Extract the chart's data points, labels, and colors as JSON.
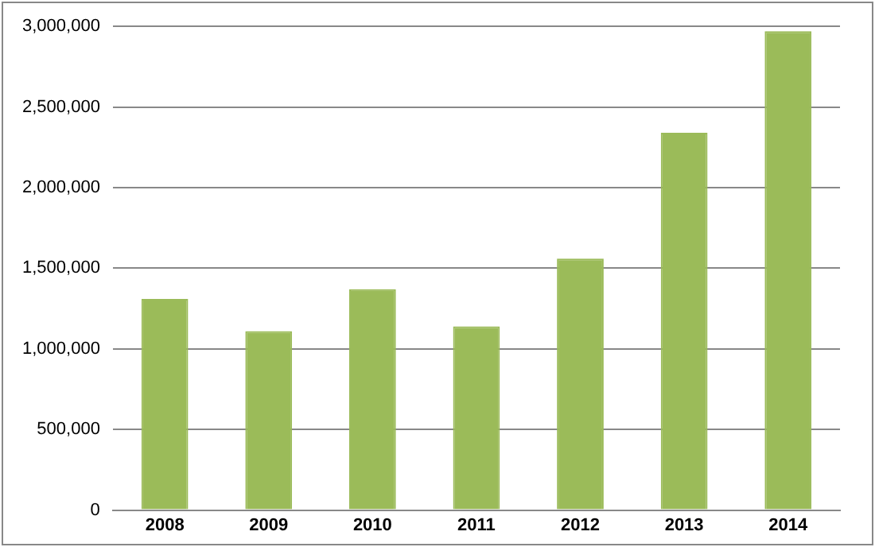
{
  "chart_data": {
    "type": "bar",
    "categories": [
      "2008",
      "2009",
      "2010",
      "2011",
      "2012",
      "2013",
      "2014"
    ],
    "values": [
      1310000,
      1110000,
      1370000,
      1140000,
      1560000,
      2340000,
      2970000
    ],
    "color": "#9bbb59",
    "ylim": [
      0,
      3000000
    ],
    "yticks": [
      0,
      {
        "value": 500000,
        "label": "500,000"
      },
      {
        "value": 1000000,
        "label": "1,000,000"
      },
      {
        "value": 1500000,
        "label": "1,500,000"
      },
      {
        "value": 2000000,
        "label": "2,000,000"
      },
      {
        "value": 2500000,
        "label": "2,500,000"
      },
      {
        "value": 3000000,
        "label": "3,000,000"
      }
    ],
    "grid": "y"
  }
}
